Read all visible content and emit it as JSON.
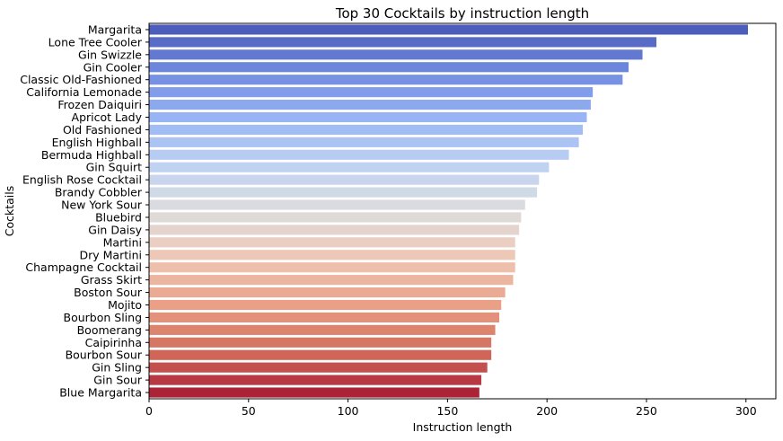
{
  "chart_data": {
    "type": "bar",
    "orientation": "horizontal",
    "title": "Top 30 Cocktails by instruction length",
    "xlabel": "Instruction length",
    "ylabel": "Cocktails",
    "xlim": [
      0,
      315
    ],
    "xticks": [
      0,
      50,
      100,
      150,
      200,
      250,
      300
    ],
    "grid": false,
    "palette": "coolwarm",
    "categories": [
      "Margarita",
      "Lone Tree Cooler",
      "Gin Swizzle",
      "Gin Cooler",
      "Classic Old-Fashioned",
      "California Lemonade",
      "Frozen Daiquiri",
      "Apricot Lady",
      "Old Fashioned",
      "English Highball",
      "Bermuda Highball",
      "Gin Squirt",
      "English Rose Cocktail",
      "Brandy Cobbler",
      "New York Sour",
      "Bluebird",
      "Gin Daisy",
      "Martini",
      "Dry Martini",
      "Champagne Cocktail",
      "Grass Skirt",
      "Boston Sour",
      "Mojito",
      "Bourbon Sling",
      "Boomerang",
      "Caipirinha",
      "Bourbon Sour",
      "Gin Sling",
      "Gin Sour",
      "Blue Margarita"
    ],
    "values": [
      301,
      255,
      248,
      241,
      238,
      223,
      222,
      220,
      218,
      216,
      211,
      201,
      196,
      195,
      189,
      187,
      186,
      184,
      184,
      184,
      183,
      179,
      177,
      176,
      174,
      172,
      172,
      170,
      167,
      166
    ]
  }
}
